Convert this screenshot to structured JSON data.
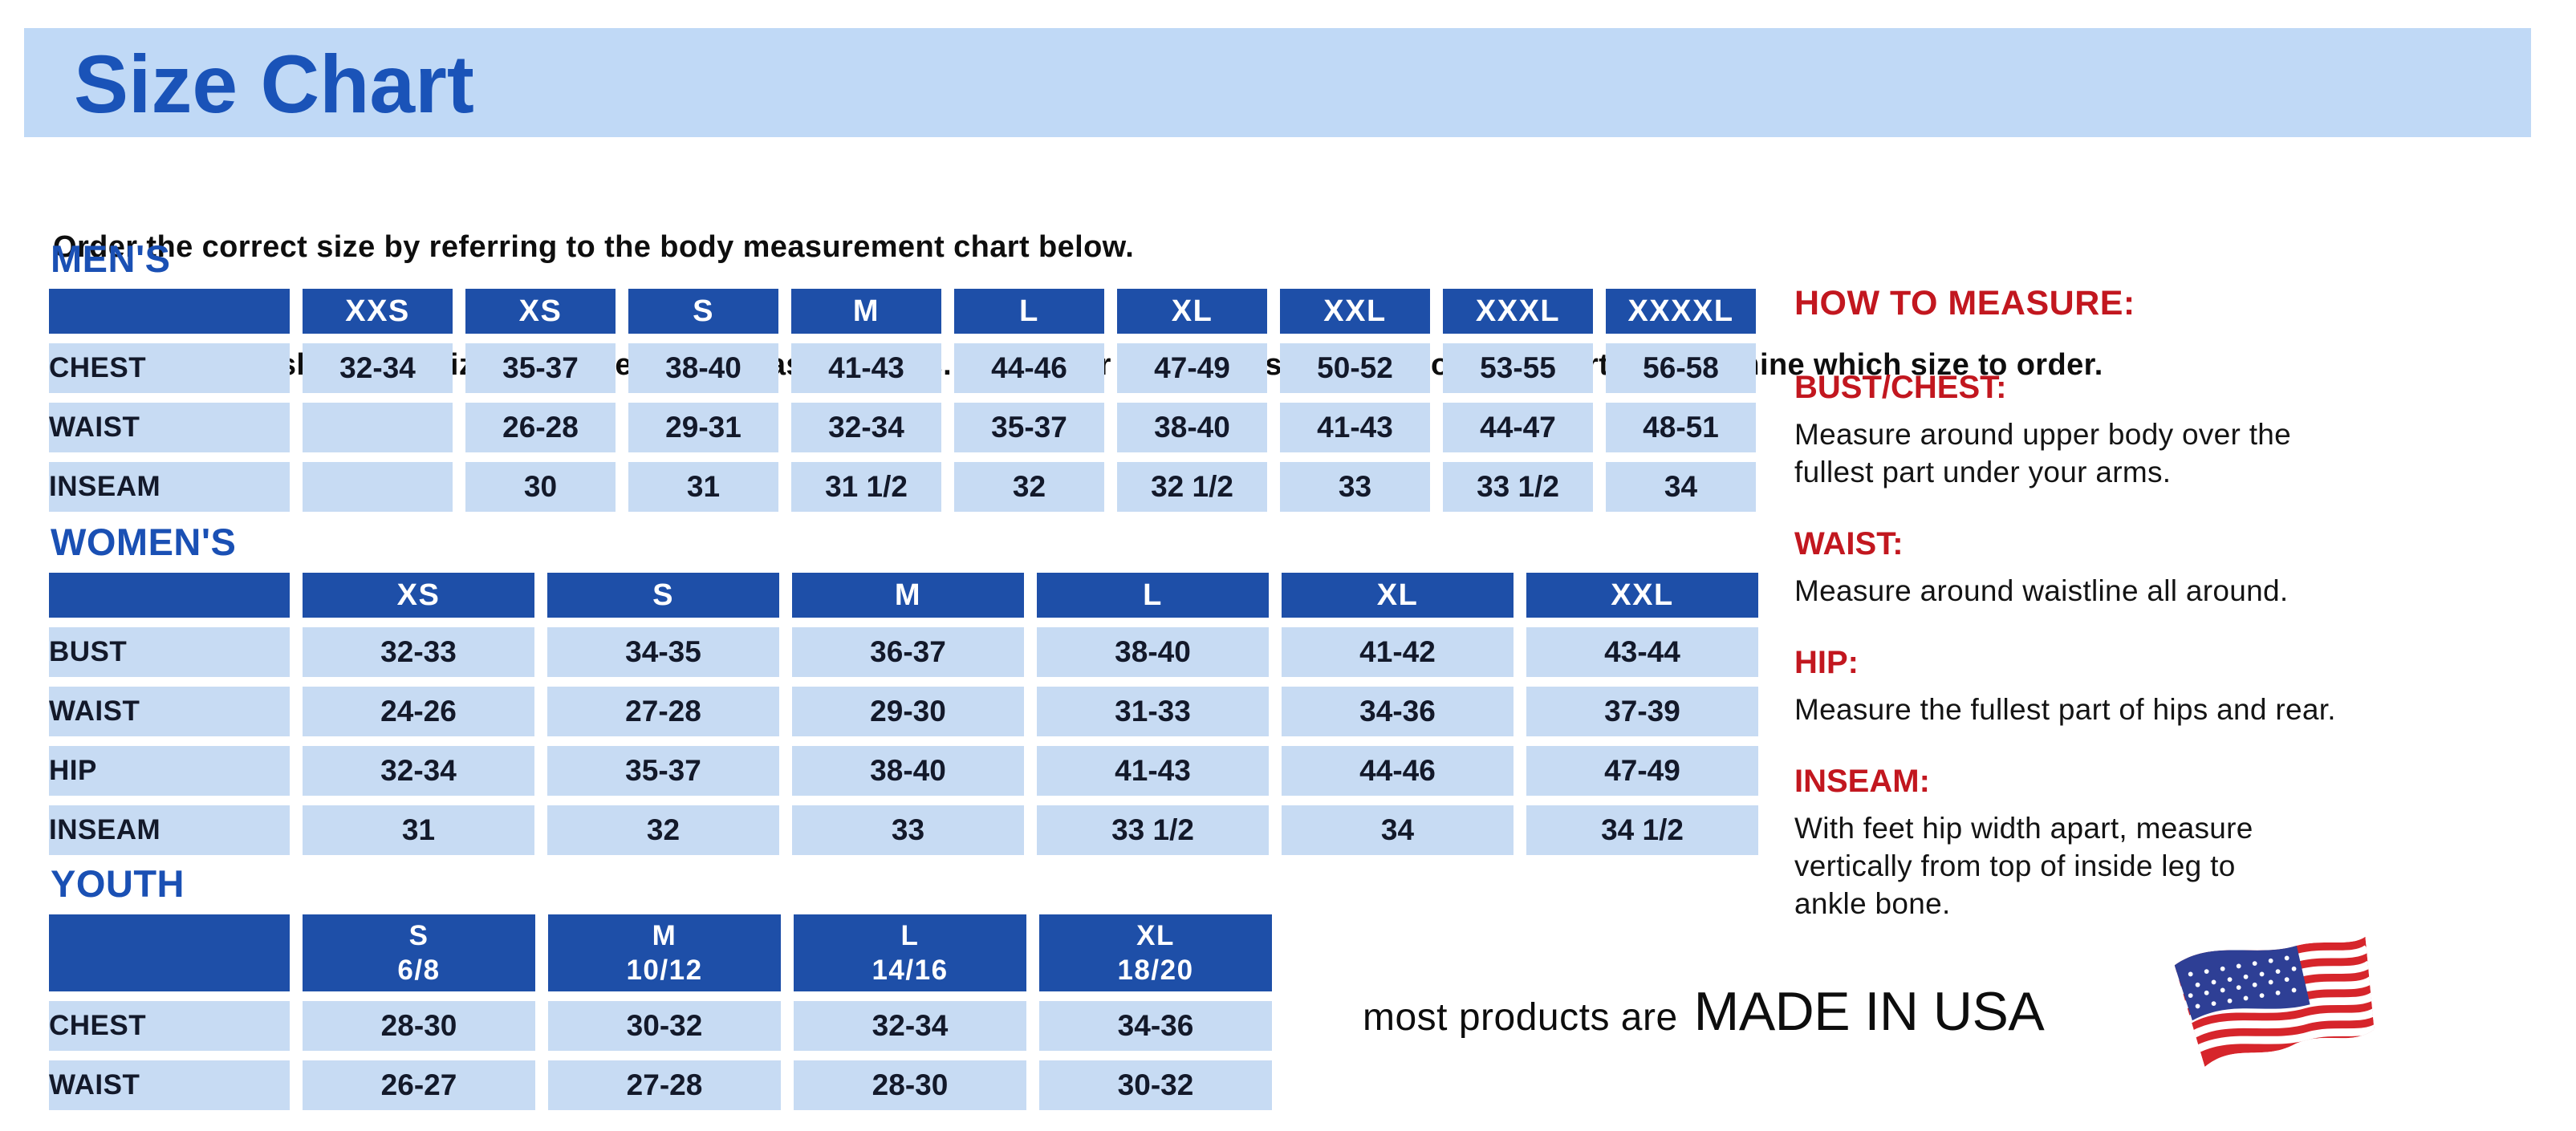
{
  "page": {
    "title": "Size Chart",
    "intro_line1": "Order the correct size by referring to the body measurement chart below.",
    "intro_line2": "Measurements shown on size chart are body measurements.  Find your body measurements on the chart to determine which size to order."
  },
  "colors": {
    "banner_bg": "#c0d9f6",
    "heading_blue": "#1a53b8",
    "table_header_blue": "#1e4fa8",
    "table_cell_blue": "#c7dbf3",
    "cell_text_navy": "#13192a",
    "measure_red": "#c2171f",
    "flag_red": "#d6252b",
    "flag_navy": "#2e3f95"
  },
  "tables": {
    "mens": {
      "heading": "MEN'S",
      "columns": [
        "XXS",
        "XS",
        "S",
        "M",
        "L",
        "XL",
        "XXL",
        "XXXL",
        "XXXXL"
      ],
      "rows": [
        {
          "label": "CHEST",
          "values": [
            "32-34",
            "35-37",
            "38-40",
            "41-43",
            "44-46",
            "47-49",
            "50-52",
            "53-55",
            "56-58"
          ]
        },
        {
          "label": "WAIST",
          "values": [
            "",
            "26-28",
            "29-31",
            "32-34",
            "35-37",
            "38-40",
            "41-43",
            "44-47",
            "48-51"
          ]
        },
        {
          "label": "INSEAM",
          "values": [
            "",
            "30",
            "31",
            "31 1/2",
            "32",
            "32 1/2",
            "33",
            "33 1/2",
            "34"
          ]
        }
      ]
    },
    "womens": {
      "heading": "WOMEN'S",
      "columns": [
        "XS",
        "S",
        "M",
        "L",
        "XL",
        "XXL"
      ],
      "rows": [
        {
          "label": "BUST",
          "values": [
            "32-33",
            "34-35",
            "36-37",
            "38-40",
            "41-42",
            "43-44"
          ]
        },
        {
          "label": "WAIST",
          "values": [
            "24-26",
            "27-28",
            "29-30",
            "31-33",
            "34-36",
            "37-39"
          ]
        },
        {
          "label": "HIP",
          "values": [
            "32-34",
            "35-37",
            "38-40",
            "41-43",
            "44-46",
            "47-49"
          ]
        },
        {
          "label": "INSEAM",
          "values": [
            "31",
            "32",
            "33",
            "33 1/2",
            "34",
            "34 1/2"
          ]
        }
      ]
    },
    "youth": {
      "heading": "YOUTH",
      "columns": [
        "S\n6/8",
        "M\n10/12",
        "L\n14/16",
        "XL\n18/20"
      ],
      "rows": [
        {
          "label": "CHEST",
          "values": [
            "28-30",
            "30-32",
            "32-34",
            "34-36"
          ]
        },
        {
          "label": "WAIST",
          "values": [
            "26-27",
            "27-28",
            "28-30",
            "30-32"
          ]
        }
      ]
    }
  },
  "how_to_measure": {
    "heading": "HOW TO MEASURE:",
    "items": [
      {
        "label": "BUST/CHEST:",
        "text": "Measure around upper body over the\nfullest part under your arms."
      },
      {
        "label": "WAIST:",
        "text": "Measure around waistline all around."
      },
      {
        "label": "HIP:",
        "text": "Measure the fullest part of hips and rear."
      },
      {
        "label": "INSEAM:",
        "text": "With feet hip width apart, measure\nvertically from top of inside leg to\nankle bone."
      }
    ]
  },
  "footer": {
    "prefix": "most products are",
    "emphasis": "MADE IN USA",
    "flag_icon": "usa-flag-icon"
  }
}
